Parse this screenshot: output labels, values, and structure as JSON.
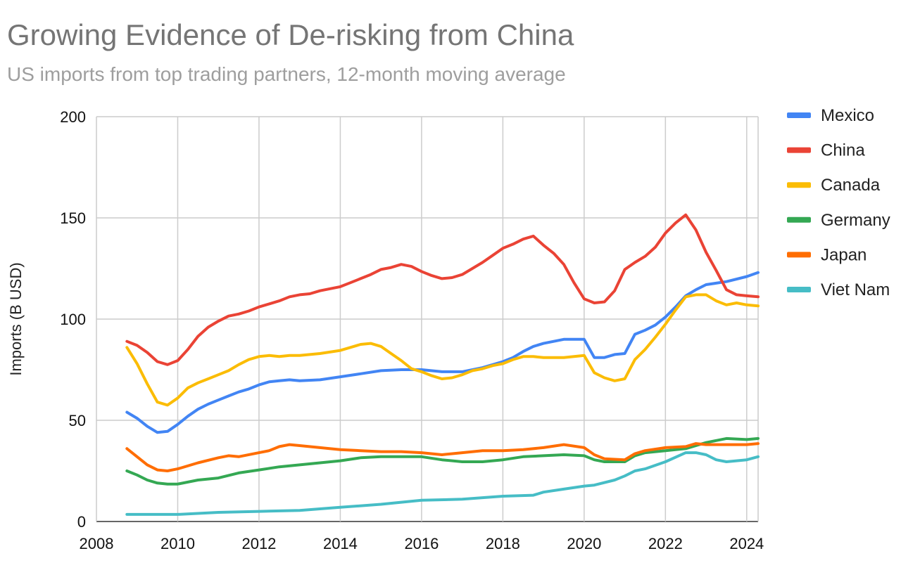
{
  "chart_data": {
    "type": "line",
    "title": "Growing Evidence of De-risking from China",
    "subtitle": "US imports from top trading partners, 12-month moving average",
    "xlabel": "",
    "ylabel": "Imports (B USD)",
    "xlim": [
      2008,
      2024.28
    ],
    "ylim": [
      0,
      200
    ],
    "xticks": [
      "2008",
      "2010",
      "2012",
      "2014",
      "2016",
      "2018",
      "2020",
      "2022",
      "2024"
    ],
    "yticks": [
      "0",
      "50",
      "100",
      "150",
      "200"
    ],
    "grid": true,
    "legend_position": "right",
    "series": [
      {
        "name": "Mexico",
        "color": "#4285F4",
        "points": [
          [
            2008.75,
            54
          ],
          [
            2009,
            51
          ],
          [
            2009.25,
            47
          ],
          [
            2009.5,
            44
          ],
          [
            2009.75,
            44.5
          ],
          [
            2010,
            48
          ],
          [
            2010.25,
            52
          ],
          [
            2010.5,
            55.5
          ],
          [
            2010.75,
            58
          ],
          [
            2011,
            60
          ],
          [
            2011.25,
            62
          ],
          [
            2011.5,
            64
          ],
          [
            2011.75,
            65.5
          ],
          [
            2012,
            67.5
          ],
          [
            2012.25,
            69
          ],
          [
            2012.5,
            69.5
          ],
          [
            2012.75,
            70
          ],
          [
            2013,
            69.5
          ],
          [
            2013.5,
            70
          ],
          [
            2014,
            71.5
          ],
          [
            2014.5,
            73
          ],
          [
            2015,
            74.5
          ],
          [
            2015.5,
            75
          ],
          [
            2016,
            75
          ],
          [
            2016.5,
            74
          ],
          [
            2017,
            74
          ],
          [
            2017.5,
            76
          ],
          [
            2018,
            79
          ],
          [
            2018.25,
            81
          ],
          [
            2018.5,
            84
          ],
          [
            2018.75,
            86.5
          ],
          [
            2019,
            88
          ],
          [
            2019.25,
            89
          ],
          [
            2019.5,
            90
          ],
          [
            2020,
            90
          ],
          [
            2020.25,
            81
          ],
          [
            2020.5,
            81
          ],
          [
            2020.75,
            82.5
          ],
          [
            2021,
            83
          ],
          [
            2021.25,
            92.5
          ],
          [
            2021.5,
            94.5
          ],
          [
            2021.75,
            97
          ],
          [
            2022,
            101
          ],
          [
            2022.25,
            106
          ],
          [
            2022.5,
            111.5
          ],
          [
            2022.75,
            114.5
          ],
          [
            2023,
            117
          ],
          [
            2023.5,
            118.5
          ],
          [
            2024,
            121
          ],
          [
            2024.28,
            123
          ]
        ]
      },
      {
        "name": "China",
        "color": "#EA4335",
        "points": [
          [
            2008.75,
            89
          ],
          [
            2009,
            87
          ],
          [
            2009.25,
            83.5
          ],
          [
            2009.5,
            79
          ],
          [
            2009.75,
            77.5
          ],
          [
            2010,
            79.5
          ],
          [
            2010.25,
            85
          ],
          [
            2010.5,
            91.5
          ],
          [
            2010.75,
            96
          ],
          [
            2011,
            99
          ],
          [
            2011.25,
            101.5
          ],
          [
            2011.5,
            102.5
          ],
          [
            2011.75,
            104
          ],
          [
            2012,
            106
          ],
          [
            2012.25,
            107.5
          ],
          [
            2012.5,
            109
          ],
          [
            2012.75,
            111
          ],
          [
            2013,
            112
          ],
          [
            2013.25,
            112.5
          ],
          [
            2013.5,
            114
          ],
          [
            2013.75,
            115
          ],
          [
            2014,
            116
          ],
          [
            2014.25,
            118
          ],
          [
            2014.5,
            120
          ],
          [
            2014.75,
            122
          ],
          [
            2015,
            124.5
          ],
          [
            2015.25,
            125.5
          ],
          [
            2015.5,
            127
          ],
          [
            2015.75,
            126
          ],
          [
            2016,
            123.5
          ],
          [
            2016.25,
            121.5
          ],
          [
            2016.5,
            120
          ],
          [
            2016.75,
            120.5
          ],
          [
            2017,
            122
          ],
          [
            2017.25,
            125
          ],
          [
            2017.5,
            128
          ],
          [
            2017.75,
            131.5
          ],
          [
            2018,
            135
          ],
          [
            2018.25,
            137
          ],
          [
            2018.5,
            139.5
          ],
          [
            2018.75,
            141
          ],
          [
            2019,
            136.5
          ],
          [
            2019.25,
            132.5
          ],
          [
            2019.5,
            127
          ],
          [
            2019.75,
            118
          ],
          [
            2020,
            110
          ],
          [
            2020.25,
            108
          ],
          [
            2020.5,
            108.5
          ],
          [
            2020.75,
            114
          ],
          [
            2021,
            124.5
          ],
          [
            2021.25,
            128
          ],
          [
            2021.5,
            131
          ],
          [
            2021.75,
            135.5
          ],
          [
            2022,
            142.5
          ],
          [
            2022.25,
            147.5
          ],
          [
            2022.5,
            151.5
          ],
          [
            2022.75,
            144
          ],
          [
            2023,
            133
          ],
          [
            2023.25,
            124
          ],
          [
            2023.5,
            114.5
          ],
          [
            2023.75,
            112
          ],
          [
            2024,
            111.5
          ],
          [
            2024.28,
            111
          ]
        ]
      },
      {
        "name": "Canada",
        "color": "#FBBC04",
        "points": [
          [
            2008.75,
            86
          ],
          [
            2009,
            78
          ],
          [
            2009.25,
            68
          ],
          [
            2009.5,
            59
          ],
          [
            2009.75,
            57.5
          ],
          [
            2010,
            61
          ],
          [
            2010.25,
            66
          ],
          [
            2010.5,
            68.5
          ],
          [
            2010.75,
            70.5
          ],
          [
            2011,
            72.5
          ],
          [
            2011.25,
            74.5
          ],
          [
            2011.5,
            77.5
          ],
          [
            2011.75,
            80
          ],
          [
            2012,
            81.5
          ],
          [
            2012.25,
            82
          ],
          [
            2012.5,
            81.5
          ],
          [
            2012.75,
            82
          ],
          [
            2013,
            82
          ],
          [
            2013.5,
            83
          ],
          [
            2014,
            84.5
          ],
          [
            2014.25,
            86
          ],
          [
            2014.5,
            87.5
          ],
          [
            2014.75,
            88
          ],
          [
            2015,
            86.5
          ],
          [
            2015.25,
            83
          ],
          [
            2015.5,
            79.5
          ],
          [
            2015.75,
            75.5
          ],
          [
            2016,
            74
          ],
          [
            2016.25,
            72
          ],
          [
            2016.5,
            70.5
          ],
          [
            2016.75,
            71
          ],
          [
            2017,
            72.5
          ],
          [
            2017.25,
            74.5
          ],
          [
            2017.5,
            75.5
          ],
          [
            2017.75,
            77
          ],
          [
            2018,
            78
          ],
          [
            2018.25,
            80
          ],
          [
            2018.5,
            81.5
          ],
          [
            2018.75,
            81.5
          ],
          [
            2019,
            81
          ],
          [
            2019.5,
            81
          ],
          [
            2019.75,
            81.5
          ],
          [
            2020,
            82
          ],
          [
            2020.25,
            73.5
          ],
          [
            2020.5,
            71
          ],
          [
            2020.75,
            69.5
          ],
          [
            2021,
            70.5
          ],
          [
            2021.25,
            80
          ],
          [
            2021.5,
            85
          ],
          [
            2021.75,
            91
          ],
          [
            2022,
            97.5
          ],
          [
            2022.25,
            104.5
          ],
          [
            2022.5,
            111
          ],
          [
            2022.75,
            112
          ],
          [
            2023,
            112
          ],
          [
            2023.25,
            109
          ],
          [
            2023.5,
            107
          ],
          [
            2023.75,
            108
          ],
          [
            2024,
            107
          ],
          [
            2024.28,
            106.5
          ]
        ]
      },
      {
        "name": "Germany",
        "color": "#34A853",
        "points": [
          [
            2008.75,
            25
          ],
          [
            2009,
            23
          ],
          [
            2009.25,
            20.5
          ],
          [
            2009.5,
            19
          ],
          [
            2009.75,
            18.5
          ],
          [
            2010,
            18.5
          ],
          [
            2010.5,
            20.5
          ],
          [
            2011,
            21.5
          ],
          [
            2011.5,
            24
          ],
          [
            2012,
            25.5
          ],
          [
            2012.5,
            27
          ],
          [
            2013,
            28
          ],
          [
            2013.5,
            29
          ],
          [
            2014,
            30
          ],
          [
            2014.5,
            31.5
          ],
          [
            2015,
            32
          ],
          [
            2015.5,
            32
          ],
          [
            2016,
            32
          ],
          [
            2016.5,
            30.5
          ],
          [
            2017,
            29.5
          ],
          [
            2017.5,
            29.5
          ],
          [
            2018,
            30.5
          ],
          [
            2018.5,
            32
          ],
          [
            2019,
            32.5
          ],
          [
            2019.5,
            33
          ],
          [
            2020,
            32.5
          ],
          [
            2020.25,
            30.5
          ],
          [
            2020.5,
            29.5
          ],
          [
            2021,
            29.5
          ],
          [
            2021.25,
            32.5
          ],
          [
            2021.5,
            34
          ],
          [
            2022,
            35
          ],
          [
            2022.5,
            36
          ],
          [
            2023,
            39
          ],
          [
            2023.5,
            41
          ],
          [
            2024,
            40.5
          ],
          [
            2024.28,
            41
          ]
        ]
      },
      {
        "name": "Japan",
        "color": "#FF6D01",
        "points": [
          [
            2008.75,
            36
          ],
          [
            2009,
            32
          ],
          [
            2009.25,
            28
          ],
          [
            2009.5,
            25.5
          ],
          [
            2009.75,
            25
          ],
          [
            2010,
            26
          ],
          [
            2010.5,
            29
          ],
          [
            2011,
            31.5
          ],
          [
            2011.25,
            32.5
          ],
          [
            2011.5,
            32
          ],
          [
            2012,
            34
          ],
          [
            2012.25,
            35
          ],
          [
            2012.5,
            37
          ],
          [
            2012.75,
            38
          ],
          [
            2013,
            37.5
          ],
          [
            2013.5,
            36.5
          ],
          [
            2014,
            35.5
          ],
          [
            2014.5,
            35
          ],
          [
            2015,
            34.5
          ],
          [
            2015.5,
            34.5
          ],
          [
            2016,
            34
          ],
          [
            2016.5,
            33
          ],
          [
            2017,
            34
          ],
          [
            2017.5,
            35
          ],
          [
            2018,
            35
          ],
          [
            2018.5,
            35.5
          ],
          [
            2019,
            36.5
          ],
          [
            2019.5,
            38
          ],
          [
            2020,
            36.5
          ],
          [
            2020.25,
            33
          ],
          [
            2020.5,
            31
          ],
          [
            2021,
            30.5
          ],
          [
            2021.25,
            33.5
          ],
          [
            2021.5,
            35
          ],
          [
            2022,
            36.5
          ],
          [
            2022.5,
            37
          ],
          [
            2022.75,
            38.5
          ],
          [
            2023,
            38
          ],
          [
            2023.5,
            38
          ],
          [
            2024,
            38
          ],
          [
            2024.28,
            38.5
          ]
        ]
      },
      {
        "name": "Viet Nam",
        "color": "#46BDC6",
        "points": [
          [
            2008.75,
            3.5
          ],
          [
            2010,
            3.5
          ],
          [
            2011,
            4.5
          ],
          [
            2012,
            5
          ],
          [
            2013,
            5.5
          ],
          [
            2014,
            7
          ],
          [
            2015,
            8.5
          ],
          [
            2015.5,
            9.5
          ],
          [
            2016,
            10.5
          ],
          [
            2017,
            11
          ],
          [
            2018,
            12.5
          ],
          [
            2018.75,
            13
          ],
          [
            2019,
            14.5
          ],
          [
            2019.5,
            16
          ],
          [
            2020,
            17.5
          ],
          [
            2020.25,
            18
          ],
          [
            2020.75,
            20.5
          ],
          [
            2021,
            22.5
          ],
          [
            2021.25,
            25
          ],
          [
            2021.5,
            26
          ],
          [
            2022,
            29.5
          ],
          [
            2022.5,
            34
          ],
          [
            2022.75,
            34
          ],
          [
            2023,
            33
          ],
          [
            2023.25,
            30.5
          ],
          [
            2023.5,
            29.5
          ],
          [
            2024,
            30.5
          ],
          [
            2024.28,
            32
          ]
        ]
      }
    ]
  }
}
